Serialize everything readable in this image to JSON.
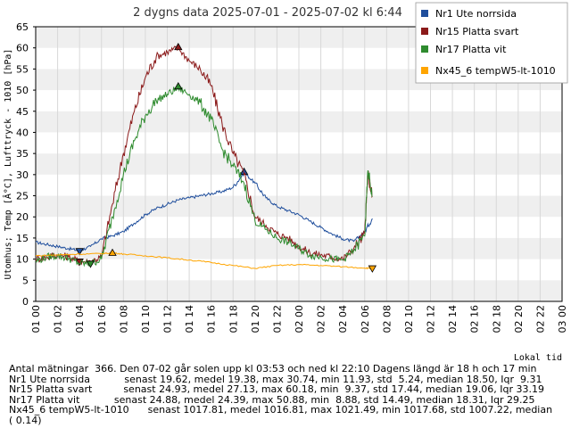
{
  "chart_data": {
    "type": "line",
    "title": "2 dygns data  2025-07-01 - 2025-07-02 kl 6:44",
    "ylabel": "Utomhus; Temp [Â°C], Lufttryck - 1010 [hPa]",
    "xlabel": "Lokal tid",
    "ylim": [
      0,
      65
    ],
    "yticks": [
      "0",
      "5",
      "10",
      "15",
      "20",
      "25",
      "30",
      "35",
      "40",
      "45",
      "50",
      "55",
      "60",
      "65"
    ],
    "xticks": [
      "01 00",
      "01 02",
      "01 04",
      "01 06",
      "01 08",
      "01 10",
      "01 12",
      "01 14",
      "01 16",
      "01 18",
      "01 20",
      "01 22",
      "02 00",
      "02 02",
      "02 04",
      "02 06",
      "02 08",
      "02 10",
      "02 12",
      "02 14",
      "02 16",
      "02 18",
      "02 20",
      "02 22",
      "03 00"
    ],
    "grid": true,
    "legend_position": "top-right",
    "series": [
      {
        "name": "Nr1 Ute norrsida",
        "color": "#1f4e9c",
        "x": [
          0,
          1,
          2,
          3,
          4,
          5,
          6,
          7,
          8,
          9,
          10,
          11,
          12,
          13,
          14,
          15,
          16,
          17,
          18,
          19,
          20,
          21,
          22,
          23,
          24,
          25,
          26,
          27,
          28,
          29,
          30,
          30.7
        ],
        "y": [
          14.0,
          13.5,
          13.0,
          12.5,
          12.0,
          13.0,
          14.8,
          15.5,
          16.5,
          18.5,
          20.5,
          22.0,
          23.0,
          24.0,
          24.5,
          25.0,
          25.5,
          26.0,
          27.0,
          30.5,
          28.0,
          24.5,
          22.5,
          21.5,
          20.5,
          19.0,
          17.5,
          16.0,
          14.8,
          14.2,
          16.5,
          19.6
        ],
        "markers": [
          {
            "x": 4.0,
            "y": 11.9,
            "kind": "min"
          },
          {
            "x": 19.0,
            "y": 30.7,
            "kind": "max"
          }
        ]
      },
      {
        "name": "Nr15 Platta svart",
        "color": "#8b1a1a",
        "x": [
          0,
          1,
          2,
          3,
          4,
          5,
          6,
          7,
          8,
          9,
          10,
          11,
          12,
          13,
          14,
          15,
          16,
          17,
          18,
          19,
          20,
          21,
          22,
          23,
          24,
          25,
          26,
          27,
          28,
          29,
          30,
          30.3,
          30.7
        ],
        "y": [
          10.0,
          10.5,
          11.0,
          10.5,
          9.4,
          9.5,
          10.5,
          23.0,
          35.0,
          45.0,
          53.0,
          58.0,
          59.0,
          60.0,
          57.0,
          55.0,
          51.0,
          42.0,
          35.0,
          30.0,
          20.0,
          18.0,
          16.0,
          15.0,
          13.0,
          11.5,
          11.0,
          10.5,
          10.0,
          12.5,
          16.0,
          30.0,
          24.9
        ],
        "markers": [
          {
            "x": 4.0,
            "y": 9.4,
            "kind": "min"
          },
          {
            "x": 13.0,
            "y": 60.2,
            "kind": "max"
          }
        ]
      },
      {
        "name": "Nr17 Platta vit",
        "color": "#2e8b2e",
        "x": [
          0,
          1,
          2,
          3,
          4,
          5,
          6,
          7,
          8,
          9,
          10,
          11,
          12,
          13,
          14,
          15,
          16,
          17,
          18,
          19,
          20,
          21,
          22,
          23,
          24,
          25,
          26,
          27,
          28,
          29,
          30,
          30.3,
          30.7
        ],
        "y": [
          9.5,
          10.5,
          10.8,
          10.2,
          9.0,
          8.9,
          10.0,
          20.0,
          30.0,
          38.0,
          44.0,
          47.5,
          49.0,
          50.5,
          49.0,
          47.0,
          43.0,
          36.0,
          32.0,
          28.0,
          19.0,
          17.0,
          15.0,
          14.0,
          12.5,
          11.0,
          10.5,
          10.0,
          9.8,
          12.0,
          15.5,
          31.0,
          24.9
        ],
        "markers": [
          {
            "x": 5.0,
            "y": 8.9,
            "kind": "min"
          },
          {
            "x": 13.0,
            "y": 50.9,
            "kind": "max"
          }
        ]
      },
      {
        "name": "Nx45_6 tempW5-lt-1010",
        "color": "#ffa500",
        "x": [
          0,
          2,
          4,
          6,
          7,
          8,
          10,
          12,
          14,
          16,
          18,
          20,
          22,
          24,
          26,
          28,
          30,
          30.7
        ],
        "y": [
          10.8,
          11.0,
          11.2,
          11.3,
          11.5,
          11.2,
          10.8,
          10.3,
          9.8,
          9.2,
          8.5,
          7.8,
          8.5,
          8.7,
          8.5,
          8.2,
          7.9,
          7.8
        ],
        "markers": [
          {
            "x": 7.0,
            "y": 11.5,
            "kind": "max"
          },
          {
            "x": 30.7,
            "y": 7.8,
            "kind": "min"
          }
        ]
      }
    ]
  },
  "stats_lines": [
    "Antal mätningar  366. Den 07-02 går solen upp kl 03:53 och ned kl 22:10 Dagens längd är 18 h och 17 min",
    "Nr1 Ute norrsida           senast 19.62, medel 19.38, max 30.74, min 11.93, std  5.24, median 18.50, Iqr  9.31",
    "Nr15 Platta svart          senast 24.93, medel 27.13, max 60.18, min  9.37, std 17.44, median 19.06, Iqr 33.19",
    "Nr17 Platta vit           senast 24.88, medel 24.39, max 50.88, min  8.88, std 14.49, median 18.31, Iqr 29.25",
    "Nx45_6 tempW5-lt-1010      senast 1017.81, medel 1016.81, max 1021.49, min 1017.68, std 1007.22, median",
    "( 0.14)"
  ]
}
